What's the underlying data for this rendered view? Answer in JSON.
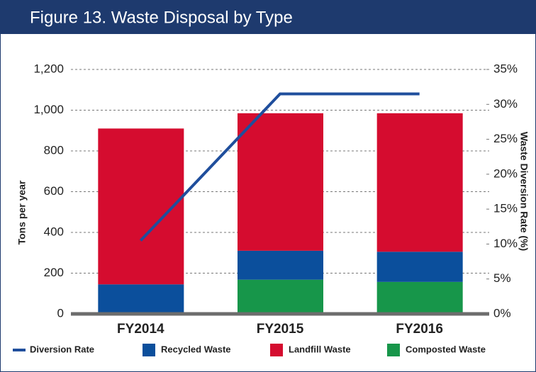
{
  "chart_data": {
    "type": "bar",
    "title": "Figure 13. Waste Disposal by Type",
    "categories": [
      "FY2014",
      "FY2015",
      "FY2016"
    ],
    "ylabel": "Tons per year",
    "y2label": "Waste Diversion Rate (%)",
    "ylim": [
      0,
      1200
    ],
    "yticks": [
      0,
      200,
      400,
      600,
      800,
      {
        "value": 1000,
        "label": "1,000"
      },
      {
        "value": 1200,
        "label": "1,200"
      }
    ],
    "y2lim": [
      0,
      35
    ],
    "y2ticks": [
      {
        "value": 0,
        "label": "0%"
      },
      {
        "value": 5,
        "label": "5%"
      },
      {
        "value": 10,
        "label": "10%"
      },
      {
        "value": 15,
        "label": "15%"
      },
      {
        "value": 20,
        "label": "20%"
      },
      {
        "value": 25,
        "label": "25%"
      },
      {
        "value": 30,
        "label": "30%"
      },
      {
        "value": 35,
        "label": "35%"
      }
    ],
    "stacked": true,
    "grid": true,
    "series": [
      {
        "name": "Diversion Rate",
        "type": "line",
        "axis": "y2",
        "color": "#1f4e9c",
        "values": [
          10.5,
          31.5,
          31.5
        ]
      },
      {
        "name": "Recycled Waste",
        "type": "bar",
        "color": "#0b4f9c",
        "values": [
          145,
          142,
          148
        ]
      },
      {
        "name": "Landfill Waste",
        "type": "bar",
        "color": "#d50c2f",
        "values": [
          765,
          675,
          680
        ]
      },
      {
        "name": "Composted Waste",
        "type": "bar",
        "color": "#17964a",
        "values": [
          0,
          168,
          157
        ]
      }
    ]
  }
}
